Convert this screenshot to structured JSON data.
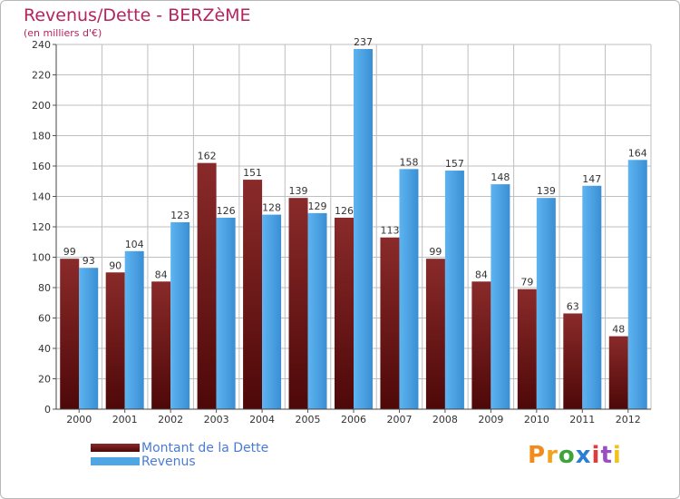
{
  "title": "Revenus/Dette - BERZèME",
  "subtitle": "(en milliers d'€)",
  "logo_text": "Proxiti",
  "colors": {
    "title": "#b5245d",
    "dette": "#7a1f1f",
    "revenus": "#4ea6e6",
    "legend_text": "#4a7bd6",
    "grid": "#bfbfbf"
  },
  "chart_data": {
    "type": "bar",
    "categories": [
      "2000",
      "2001",
      "2002",
      "2003",
      "2004",
      "2005",
      "2006",
      "2007",
      "2008",
      "2009",
      "2010",
      "2011",
      "2012"
    ],
    "series": [
      {
        "name": "Montant de la Dette",
        "values": [
          99,
          90,
          84,
          162,
          151,
          139,
          126,
          113,
          99,
          84,
          79,
          63,
          48
        ]
      },
      {
        "name": "Revenus",
        "values": [
          93,
          104,
          123,
          126,
          128,
          129,
          237,
          158,
          157,
          148,
          139,
          147,
          164
        ]
      }
    ],
    "ylim": [
      0,
      240
    ],
    "yticks": [
      0,
      20,
      40,
      60,
      80,
      100,
      120,
      140,
      160,
      180,
      200,
      220,
      240
    ],
    "grid": true,
    "legend_position": "bottom-left"
  }
}
